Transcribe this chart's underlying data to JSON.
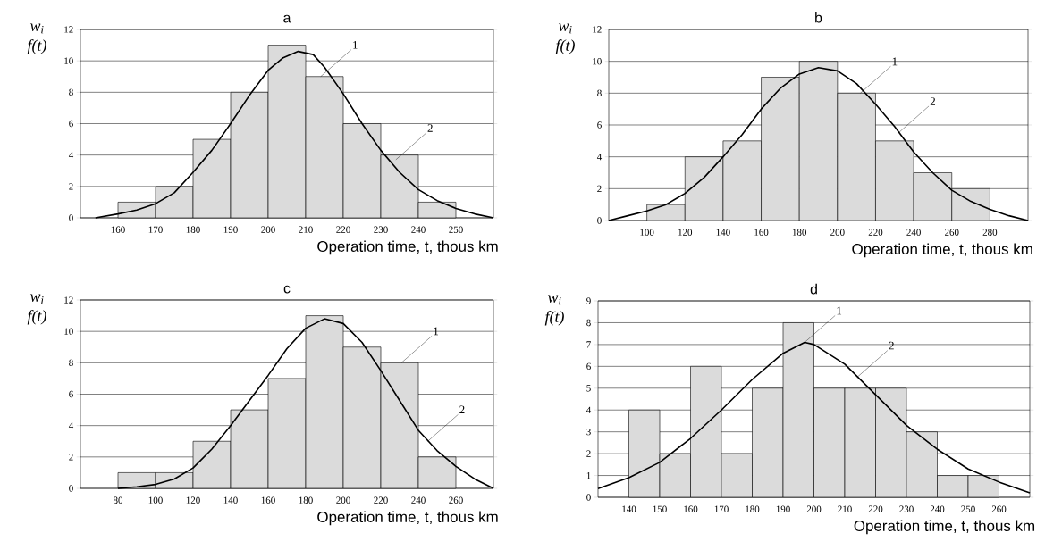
{
  "chart_data": [
    {
      "type": "histogram",
      "title": "a",
      "xlabel": "Operation time, t, thous km",
      "ylabel": "w$_{i}$ f(t)",
      "xlim": [
        150,
        260
      ],
      "xticks": [
        160,
        170,
        180,
        190,
        200,
        210,
        220,
        230,
        240,
        250
      ],
      "ylim": [
        0,
        12
      ],
      "yticks": [
        0,
        2,
        4,
        6,
        8,
        10,
        12
      ],
      "grid": "y",
      "series": [
        {
          "type": "histogram",
          "color": "#000000",
          "bins": [
            160,
            170,
            180,
            190,
            200,
            210,
            220,
            230,
            240,
            250
          ],
          "values": [
            1,
            2,
            5,
            8,
            11,
            9,
            6,
            4,
            1
          ]
        },
        {
          "type": "line",
          "color": "#000000",
          "x": [
            154,
            160,
            165,
            170,
            175,
            180,
            185,
            190,
            195,
            200,
            204,
            208,
            212,
            215,
            220,
            225,
            230,
            235,
            240,
            245,
            250,
            255,
            260
          ],
          "values": [
            0,
            0.25,
            0.5,
            0.9,
            1.6,
            2.9,
            4.3,
            6.0,
            7.8,
            9.4,
            10.2,
            10.6,
            10.4,
            9.6,
            7.9,
            6.0,
            4.3,
            2.9,
            1.8,
            1.1,
            0.6,
            0.25,
            0
          ]
        }
      ],
      "annotations": [
        {
          "text": "1",
          "x": 214,
          "y": 9
        },
        {
          "text": "2",
          "x": 234,
          "y": 3.7
        }
      ]
    },
    {
      "type": "histogram",
      "title": "b",
      "xlabel": "Operation time, t, thous km",
      "ylabel": "w$_{i}$ f(t)",
      "xlim": [
        80,
        300
      ],
      "xticks": [
        100,
        120,
        140,
        160,
        180,
        200,
        220,
        240,
        260,
        280
      ],
      "ylim": [
        0,
        12
      ],
      "yticks": [
        0,
        2,
        4,
        6,
        8,
        10,
        12
      ],
      "grid": "y",
      "series": [
        {
          "type": "histogram",
          "color": "#000000",
          "bins": [
            100,
            120,
            140,
            160,
            180,
            200,
            220,
            240,
            260,
            280
          ],
          "values": [
            1,
            4,
            5,
            9,
            10,
            8,
            5,
            3,
            2
          ]
        },
        {
          "type": "line",
          "color": "#000000",
          "x": [
            80,
            90,
            100,
            110,
            120,
            130,
            140,
            150,
            160,
            170,
            180,
            190,
            200,
            210,
            220,
            230,
            240,
            250,
            260,
            270,
            280,
            290,
            300
          ],
          "values": [
            0,
            0.3,
            0.6,
            1.0,
            1.7,
            2.7,
            4.0,
            5.4,
            7.0,
            8.3,
            9.2,
            9.6,
            9.4,
            8.6,
            7.3,
            5.9,
            4.3,
            3.0,
            1.9,
            1.2,
            0.7,
            0.3,
            0
          ]
        }
      ],
      "annotations": [
        {
          "text": "1",
          "x": 212,
          "y": 8
        },
        {
          "text": "2",
          "x": 232,
          "y": 5.5
        }
      ]
    },
    {
      "type": "histogram",
      "title": "c",
      "xlabel": "Operation time, t, thous km",
      "ylabel": "w$_{i}$ f(t)",
      "xlim": [
        60,
        280
      ],
      "xticks": [
        80,
        100,
        120,
        140,
        160,
        180,
        200,
        220,
        240,
        260
      ],
      "ylim": [
        0,
        12
      ],
      "yticks": [
        0,
        2,
        4,
        6,
        8,
        10,
        12
      ],
      "grid": "y",
      "series": [
        {
          "type": "histogram",
          "color": "#000000",
          "bins": [
            80,
            100,
            120,
            140,
            160,
            180,
            200,
            220,
            240,
            260
          ],
          "values": [
            1,
            1,
            3,
            5,
            7,
            11,
            9,
            8,
            2
          ]
        },
        {
          "type": "line",
          "color": "#000000",
          "x": [
            80,
            90,
            100,
            110,
            120,
            130,
            140,
            150,
            160,
            170,
            180,
            190,
            200,
            210,
            220,
            230,
            240,
            250,
            260,
            270,
            280
          ],
          "values": [
            0,
            0.1,
            0.25,
            0.6,
            1.3,
            2.5,
            4.0,
            5.6,
            7.2,
            8.9,
            10.2,
            10.8,
            10.5,
            9.3,
            7.5,
            5.6,
            3.7,
            2.4,
            1.4,
            0.6,
            0
          ]
        }
      ],
      "annotations": [
        {
          "text": "1",
          "x": 231,
          "y": 8
        },
        {
          "text": "2",
          "x": 245,
          "y": 3.0
        }
      ]
    },
    {
      "type": "histogram",
      "title": "d",
      "xlabel": "Operation time, t, thous km",
      "ylabel": "w$_{i}$ f(t)",
      "xlim": [
        130,
        270
      ],
      "xticks": [
        140,
        150,
        160,
        170,
        180,
        190,
        200,
        210,
        220,
        230,
        240,
        250,
        260
      ],
      "ylim": [
        0,
        9
      ],
      "yticks": [
        0,
        1,
        2,
        3,
        4,
        5,
        6,
        7,
        8,
        9
      ],
      "grid": "y",
      "series": [
        {
          "type": "histogram",
          "color": "#000000",
          "bins": [
            140,
            150,
            160,
            170,
            180,
            190,
            200,
            210,
            220,
            230,
            240,
            250,
            260
          ],
          "values": [
            4,
            2,
            6,
            2,
            5,
            8,
            5,
            5,
            5,
            3,
            1,
            1
          ]
        },
        {
          "type": "line",
          "color": "#000000",
          "x": [
            130,
            140,
            150,
            160,
            170,
            180,
            190,
            197,
            200,
            210,
            220,
            230,
            240,
            250,
            260,
            270
          ],
          "values": [
            0.4,
            0.9,
            1.6,
            2.7,
            4.0,
            5.4,
            6.6,
            7.1,
            7.0,
            6.1,
            4.7,
            3.3,
            2.2,
            1.3,
            0.7,
            0.2
          ]
        }
      ],
      "annotations": [
        {
          "text": "1",
          "x": 197,
          "y": 7.1
        },
        {
          "text": "2",
          "x": 214,
          "y": 5.5
        }
      ]
    }
  ]
}
